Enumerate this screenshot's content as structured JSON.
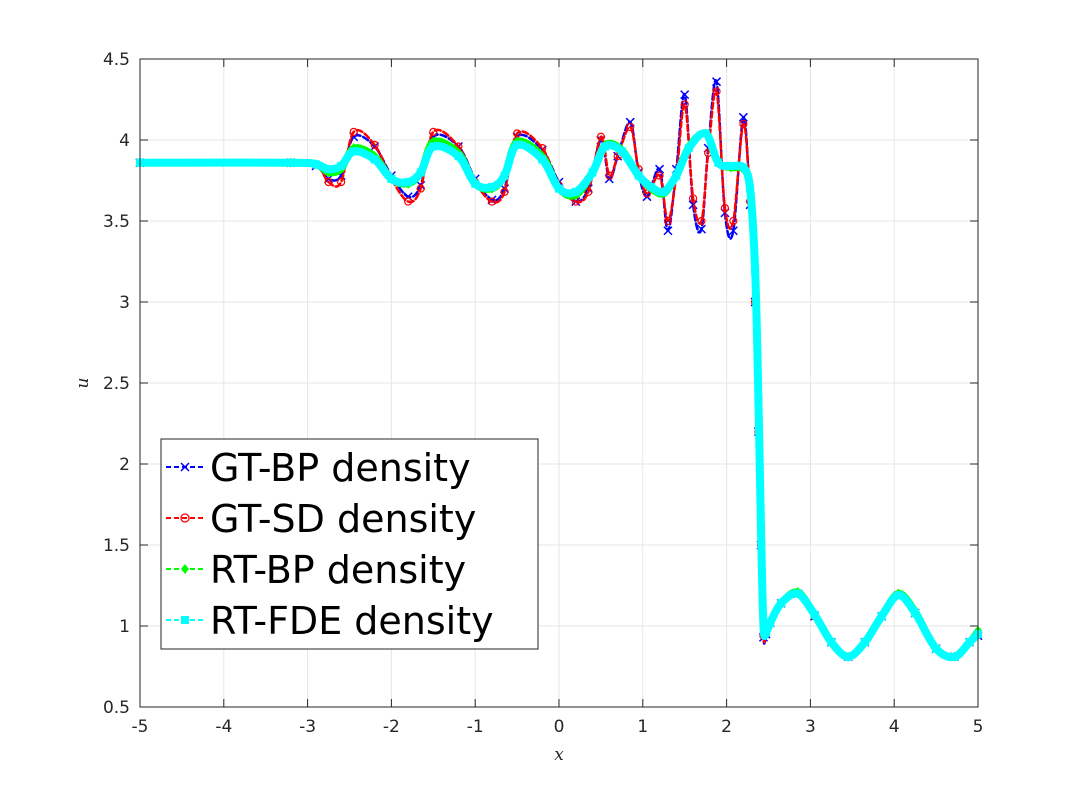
{
  "chart_data": {
    "type": "line",
    "title": "",
    "xlabel": "x",
    "ylabel": "u",
    "xlim": [
      -5,
      5
    ],
    "ylim": [
      0.5,
      4.5
    ],
    "xticks": [
      "-5",
      "-4",
      "-3",
      "-2",
      "-1",
      "0",
      "1",
      "2",
      "3",
      "4",
      "5"
    ],
    "yticks": [
      "0.5",
      "1",
      "1.5",
      "2",
      "2.5",
      "3",
      "3.5",
      "4",
      "4.5"
    ],
    "grid": true,
    "legend_position": "lower-left",
    "series": [
      {
        "name": "GT-BP density",
        "color": "#0000ff",
        "marker": "x",
        "x": [
          -5,
          -3.2,
          -2.9,
          -2.75,
          -2.6,
          -2.45,
          -2.2,
          -2.0,
          -1.8,
          -1.65,
          -1.5,
          -1.2,
          -1.0,
          -0.8,
          -0.65,
          -0.5,
          -0.2,
          0.0,
          0.2,
          0.35,
          0.5,
          0.6,
          0.7,
          0.85,
          0.95,
          1.05,
          1.2,
          1.3,
          1.4,
          1.5,
          1.6,
          1.7,
          1.78,
          1.88,
          1.98,
          2.08,
          2.2,
          2.28,
          2.34,
          2.38,
          2.41,
          2.44,
          2.47,
          2.52,
          2.65,
          2.85,
          3.05,
          3.25,
          3.45,
          3.65,
          3.85,
          4.05,
          4.25,
          4.5,
          4.72,
          4.9,
          5.0
        ],
        "y": [
          3.86,
          3.86,
          3.84,
          3.76,
          3.78,
          4.02,
          3.96,
          3.78,
          3.65,
          3.72,
          4.02,
          3.96,
          3.76,
          3.63,
          3.7,
          4.02,
          3.94,
          3.74,
          3.62,
          3.7,
          4.0,
          3.76,
          3.9,
          4.11,
          3.8,
          3.65,
          3.82,
          3.44,
          3.82,
          4.28,
          3.6,
          3.45,
          3.95,
          4.36,
          3.55,
          3.44,
          4.14,
          3.6,
          3.0,
          2.2,
          1.5,
          0.93,
          0.95,
          1.02,
          1.14,
          1.2,
          1.06,
          0.9,
          0.81,
          0.9,
          1.06,
          1.19,
          1.08,
          0.86,
          0.81,
          0.9,
          0.94
        ]
      },
      {
        "name": "GT-SD density",
        "color": "#ff0000",
        "marker": "o",
        "x": [
          -5,
          -3.2,
          -2.9,
          -2.75,
          -2.6,
          -2.45,
          -2.2,
          -2.0,
          -1.8,
          -1.65,
          -1.5,
          -1.2,
          -1.0,
          -0.8,
          -0.65,
          -0.5,
          -0.2,
          0.0,
          0.2,
          0.35,
          0.5,
          0.6,
          0.7,
          0.85,
          0.95,
          1.05,
          1.2,
          1.3,
          1.4,
          1.5,
          1.6,
          1.7,
          1.78,
          1.88,
          1.98,
          2.08,
          2.2,
          2.28,
          2.34,
          2.38,
          2.41,
          2.44,
          2.47,
          2.52,
          2.65,
          2.85,
          3.05,
          3.25,
          3.45,
          3.65,
          3.85,
          4.05,
          4.25,
          4.5,
          4.72,
          4.9,
          5.0
        ],
        "y": [
          3.86,
          3.86,
          3.85,
          3.74,
          3.74,
          4.05,
          3.97,
          3.76,
          3.62,
          3.7,
          4.05,
          3.96,
          3.74,
          3.62,
          3.68,
          4.04,
          3.95,
          3.72,
          3.62,
          3.68,
          4.02,
          3.78,
          3.9,
          4.08,
          3.82,
          3.67,
          3.78,
          3.5,
          3.78,
          4.22,
          3.64,
          3.5,
          3.92,
          4.3,
          3.58,
          3.5,
          4.1,
          3.62,
          3.0,
          2.2,
          1.5,
          0.94,
          0.95,
          1.02,
          1.14,
          1.2,
          1.06,
          0.9,
          0.81,
          0.9,
          1.06,
          1.19,
          1.08,
          0.86,
          0.81,
          0.9,
          0.95
        ]
      },
      {
        "name": "RT-BP density",
        "color": "#00ff00",
        "marker": "d",
        "x": [
          -5,
          -3.2,
          -2.9,
          -2.75,
          -2.6,
          -2.45,
          -2.2,
          -2.0,
          -1.8,
          -1.65,
          -1.5,
          -1.2,
          -1.0,
          -0.8,
          -0.65,
          -0.5,
          -0.2,
          0.0,
          0.2,
          0.4,
          0.55,
          0.75,
          0.95,
          1.1,
          1.25,
          1.4,
          1.55,
          1.75,
          1.9,
          2.05,
          2.2,
          2.28,
          2.34,
          2.38,
          2.41,
          2.44,
          2.47,
          2.52,
          2.65,
          2.85,
          3.05,
          3.25,
          3.45,
          3.65,
          3.85,
          4.05,
          4.25,
          4.5,
          4.72,
          4.9,
          5.0
        ],
        "y": [
          3.86,
          3.86,
          3.85,
          3.8,
          3.82,
          3.95,
          3.9,
          3.76,
          3.73,
          3.8,
          3.99,
          3.92,
          3.73,
          3.7,
          3.78,
          3.99,
          3.9,
          3.7,
          3.66,
          3.8,
          3.97,
          3.94,
          3.78,
          3.7,
          3.67,
          3.78,
          3.96,
          4.04,
          3.86,
          3.83,
          3.82,
          3.7,
          3.2,
          2.4,
          1.6,
          1.0,
          0.96,
          1.02,
          1.14,
          1.21,
          1.07,
          0.9,
          0.81,
          0.9,
          1.06,
          1.2,
          1.09,
          0.86,
          0.81,
          0.9,
          0.97
        ]
      },
      {
        "name": "RT-FDE density",
        "color": "#00ffff",
        "marker": "s",
        "x": [
          -5,
          -3.2,
          -2.9,
          -2.75,
          -2.6,
          -2.45,
          -2.2,
          -2.0,
          -1.8,
          -1.65,
          -1.5,
          -1.2,
          -1.0,
          -0.8,
          -0.65,
          -0.5,
          -0.2,
          0.0,
          0.2,
          0.4,
          0.55,
          0.75,
          0.95,
          1.1,
          1.25,
          1.4,
          1.55,
          1.75,
          1.9,
          2.05,
          2.2,
          2.28,
          2.34,
          2.38,
          2.41,
          2.44,
          2.47,
          2.52,
          2.65,
          2.85,
          3.05,
          3.25,
          3.45,
          3.65,
          3.85,
          4.05,
          4.25,
          4.5,
          4.72,
          4.9,
          5.0
        ],
        "y": [
          3.86,
          3.86,
          3.85,
          3.82,
          3.84,
          3.93,
          3.88,
          3.76,
          3.74,
          3.8,
          3.96,
          3.9,
          3.73,
          3.71,
          3.78,
          3.97,
          3.88,
          3.7,
          3.68,
          3.8,
          3.96,
          3.93,
          3.78,
          3.71,
          3.68,
          3.78,
          3.95,
          4.04,
          3.86,
          3.84,
          3.83,
          3.7,
          3.2,
          2.4,
          1.6,
          1.0,
          0.96,
          1.02,
          1.14,
          1.2,
          1.07,
          0.9,
          0.81,
          0.9,
          1.06,
          1.19,
          1.08,
          0.86,
          0.81,
          0.9,
          0.95
        ]
      }
    ]
  }
}
